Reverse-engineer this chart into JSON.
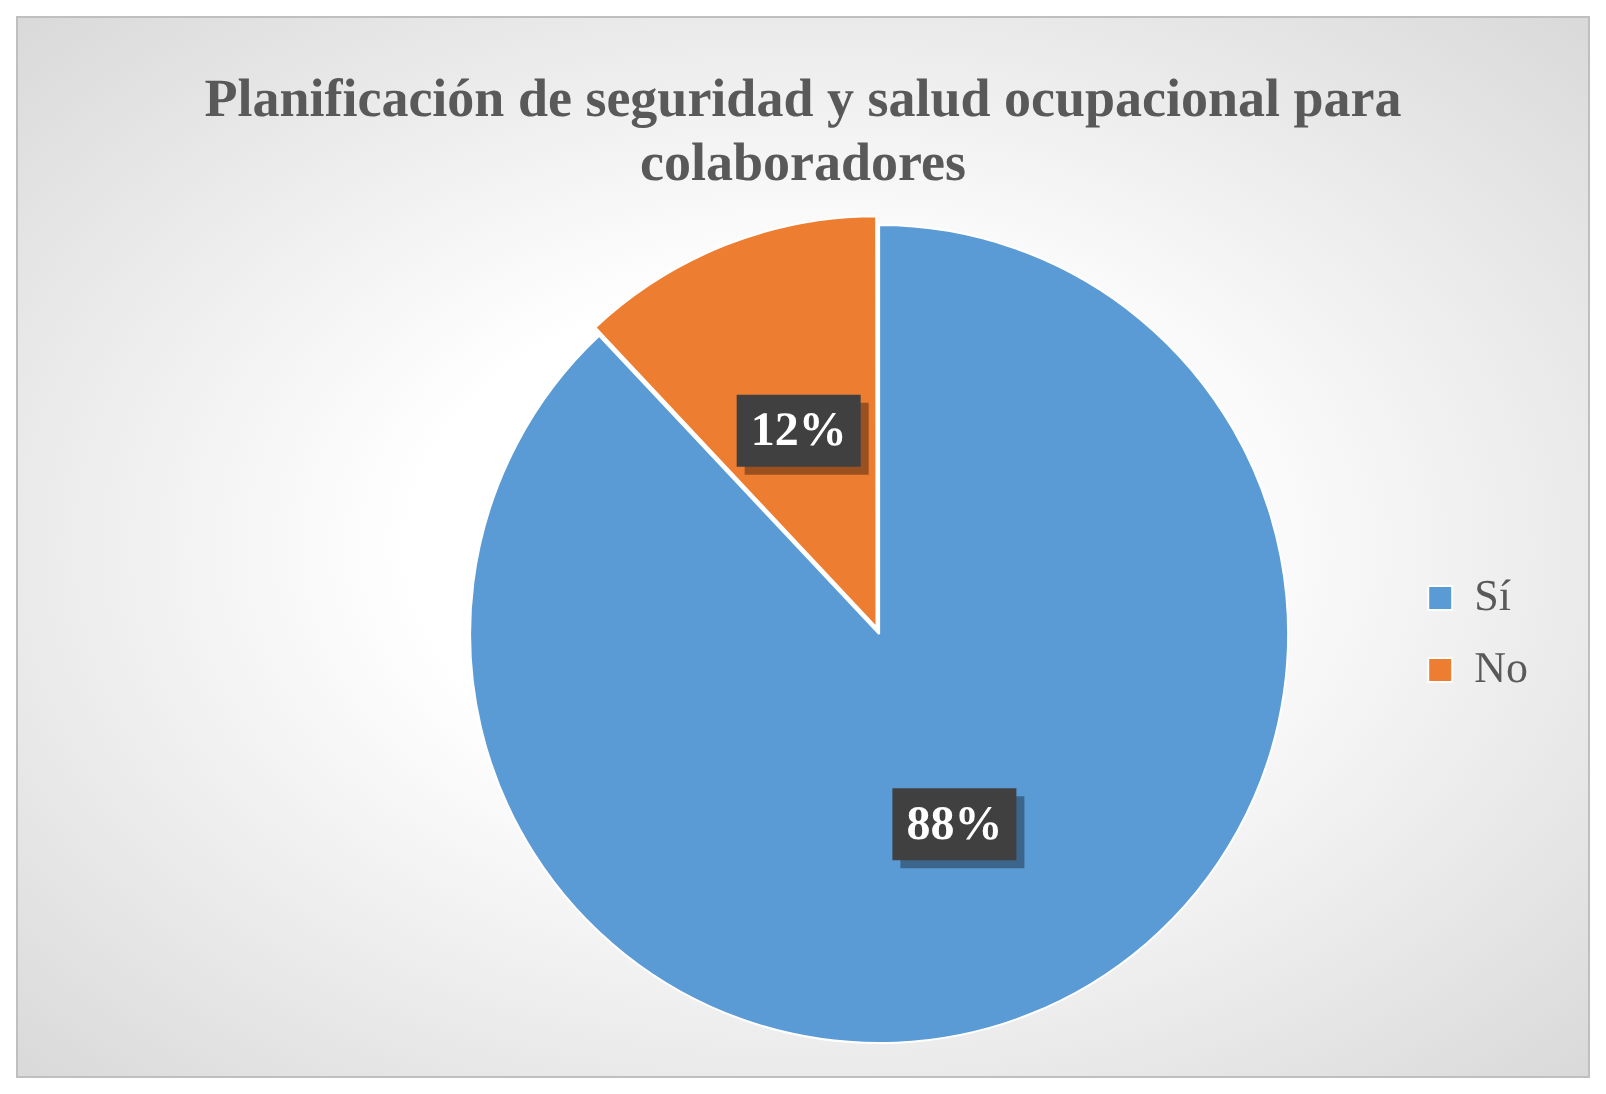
{
  "chart_data": {
    "type": "pie",
    "title": "Planificación de seguridad y salud ocupacional para colaboradores",
    "categories": [
      "Sí",
      "No"
    ],
    "values": [
      88,
      12
    ],
    "colors": [
      "#5b9bd5",
      "#ed7d31"
    ],
    "value_labels": [
      "88%",
      "12%"
    ],
    "legend": "right"
  }
}
